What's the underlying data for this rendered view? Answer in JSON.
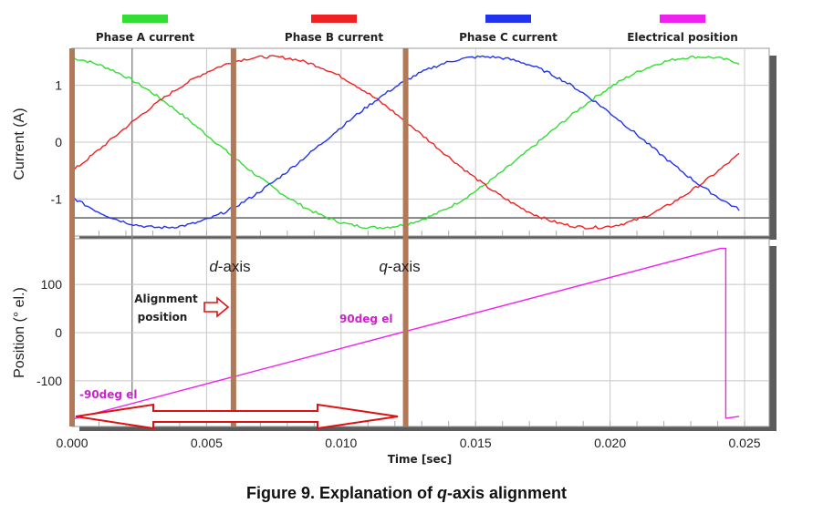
{
  "caption": {
    "prefix": "Figure 9. Explanation of ",
    "italic": "q",
    "suffix": "-axis alignment"
  },
  "colors": {
    "phase_a": "#33dd33",
    "phase_b": "#ee2222",
    "phase_c": "#2233ee",
    "position": "#ee22ee",
    "marker": "#b07a58",
    "arrow": "#dd1111"
  },
  "chart_data": [
    {
      "type": "line",
      "ylabel": "Current (A)",
      "xlim": [
        0,
        0.025
      ],
      "ylim": [
        -1.65,
        1.65
      ],
      "yticks": [
        {
          "value": 1,
          "label": "1"
        },
        {
          "value": 0,
          "label": "0"
        },
        {
          "value": -1,
          "label": "-1"
        }
      ],
      "grid": true,
      "legend": "top",
      "series": [
        {
          "name": "Phase A current",
          "color_key": "phase_a",
          "amplitude": 1.5,
          "phase_deg": 10,
          "x_end": 0.0248
        },
        {
          "name": "Phase B current",
          "color_key": "phase_b",
          "amplitude": 1.5,
          "phase_deg": -110,
          "x_end": 0.0248
        },
        {
          "name": "Phase C current",
          "color_key": "phase_c",
          "amplitude": 1.5,
          "phase_deg": 130,
          "x_end": 0.0248
        }
      ],
      "period": 0.024,
      "threshold_y": -1.33,
      "threshold_note": "horizontal reference line"
    },
    {
      "type": "line",
      "ylabel": "Position (° el.)",
      "xlabel": "Time [sec]",
      "xlim": [
        0,
        0.025
      ],
      "ylim": [
        -195,
        195
      ],
      "xticks": [
        {
          "value": 0,
          "label": "0.000"
        },
        {
          "value": 0.005,
          "label": "0.005"
        },
        {
          "value": 0.01,
          "label": "0.010"
        },
        {
          "value": 0.015,
          "label": "0.015"
        },
        {
          "value": 0.02,
          "label": "0.020"
        },
        {
          "value": 0.025,
          "label": "0.025"
        }
      ],
      "yticks": [
        {
          "value": 100,
          "label": "100"
        },
        {
          "value": 0,
          "label": "0"
        },
        {
          "value": -100,
          "label": "-100"
        }
      ],
      "grid": true,
      "series": [
        {
          "name": "Electrical position",
          "color_key": "position",
          "x": [
            0,
            0.0241,
            0.0243,
            0.0243,
            0.0248
          ],
          "y": [
            -180,
            175,
            175,
            -178,
            -174
          ]
        }
      ],
      "markers": [
        {
          "x": 0.0,
          "label": ""
        },
        {
          "x": 0.006,
          "label_italic": "d",
          "label_rest": "-axis"
        },
        {
          "x": 0.0124,
          "label_italic": "q",
          "label_rest": "-axis"
        }
      ],
      "annotations": {
        "alignment_line1": "Alignment",
        "alignment_line2": "position",
        "neg90": "-90deg el",
        "pos90": "90deg el"
      }
    }
  ]
}
